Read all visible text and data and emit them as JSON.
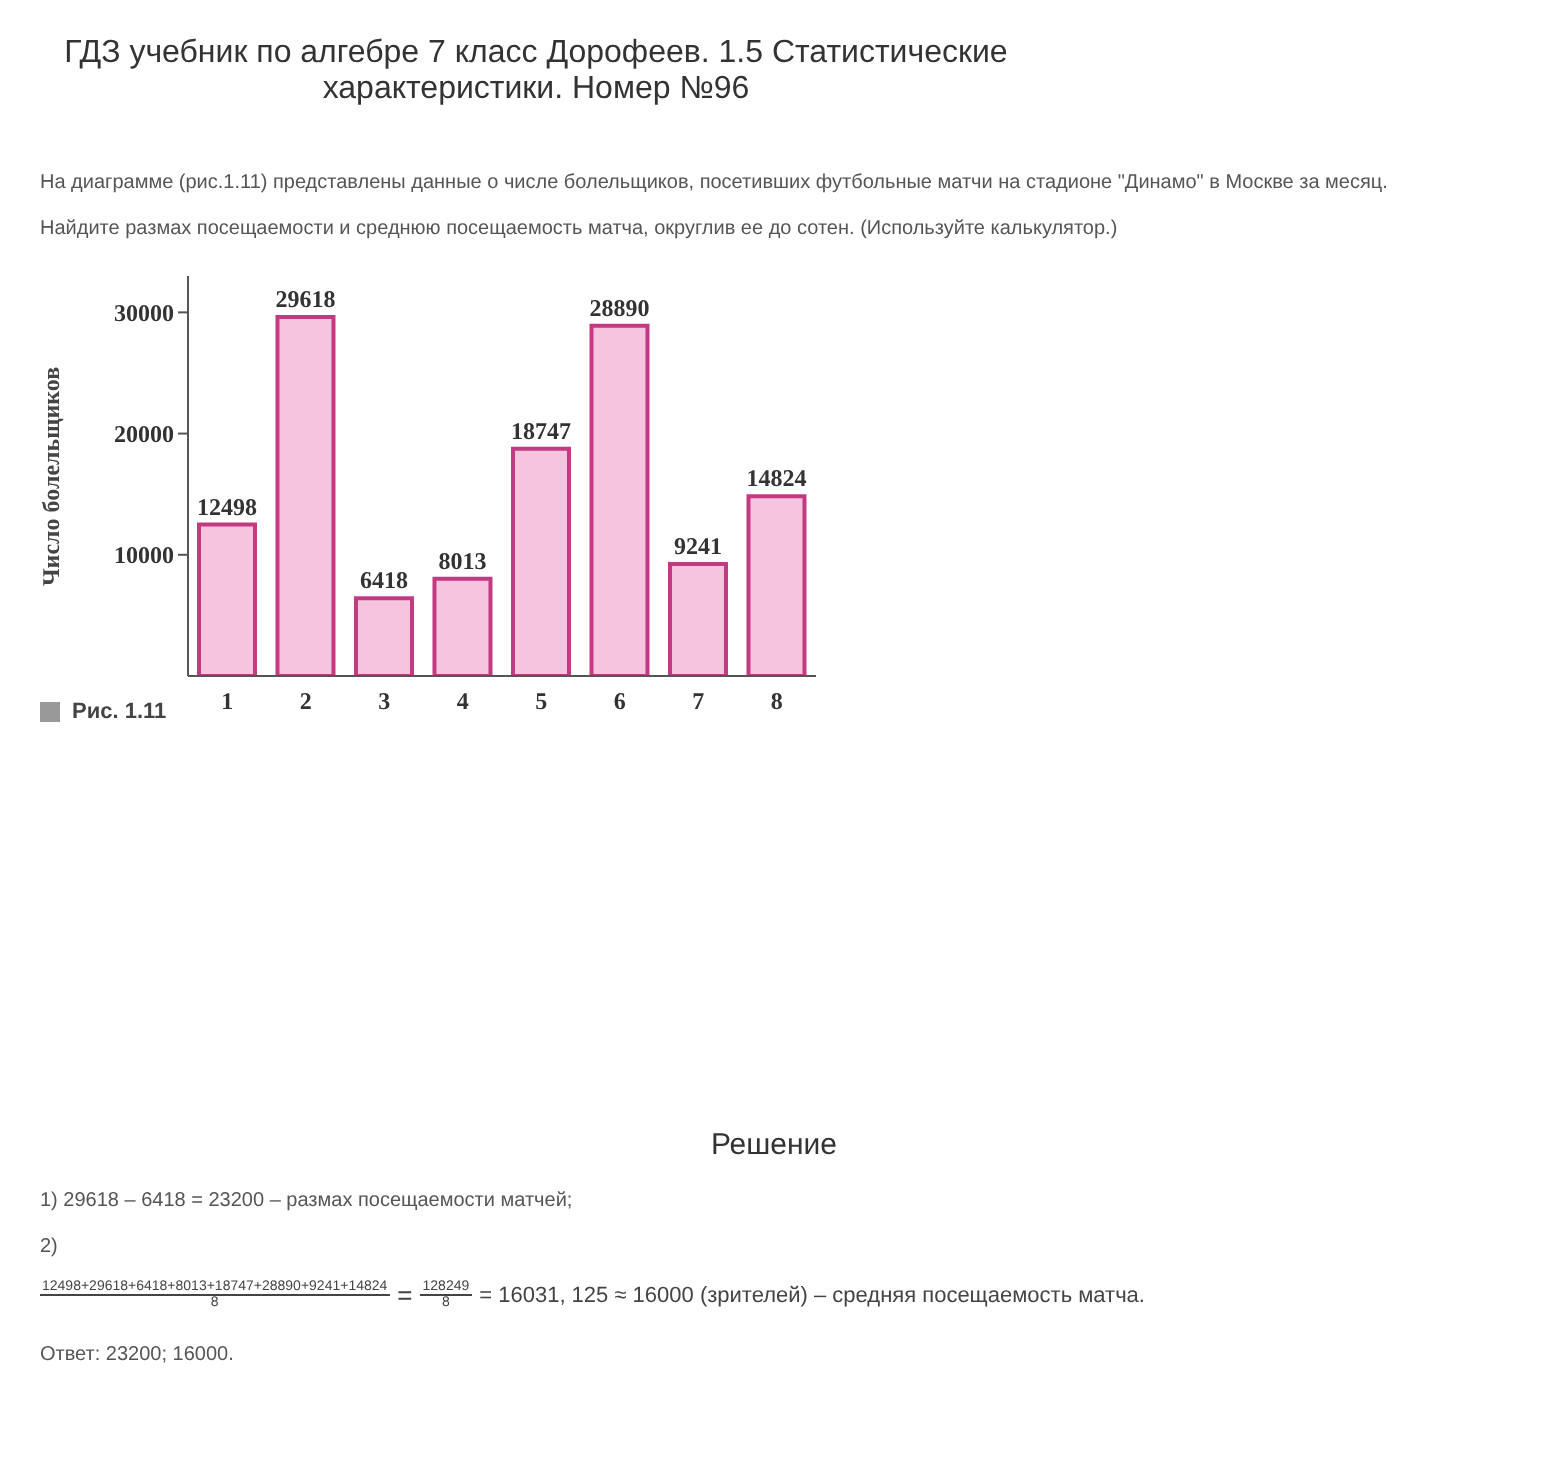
{
  "chart_data": {
    "type": "bar",
    "title": "ГДЗ учебник по алгебре 7 класс Дорофеев. 1.5 Статистические характеристики. Номер №96",
    "subtitle": "На диаграмме (рис.1.11) представлены данные о числе болельщиков, посетивших футбольные матчи на стадионе \"Динамо\" в Москве за месяц.",
    "ylabel": "Число болельщиков",
    "categories": [
      "1",
      "2",
      "3",
      "4",
      "5",
      "6",
      "7",
      "8"
    ],
    "values": [
      12498,
      29618,
      6418,
      8013,
      18747,
      28890,
      9241,
      14824
    ],
    "color": "#f5c4df",
    "ylim": [
      0,
      33000
    ],
    "yticks": [
      10000,
      20000,
      30000
    ],
    "grid": false,
    "data_labels": true,
    "annotations": [
      "Найдите размах посещаемости и среднюю посещаемость матча, округлив ее до сотен. (Используйте калькулятор.)",
      "Рис. 1.11",
      "Решение",
      "1) 29618 – 6418 = 23200 – размах посещаемости матчей;",
      "2)",
      "12498+29618+6418+8013+18747+28890+9241+14824",
      "8",
      "=",
      "128249",
      "8",
      "= 16031, 125 ≈ 16000 (зрителей) – средняя посещаемость матча.",
      "Ответ: 23200; 16000."
    ]
  }
}
